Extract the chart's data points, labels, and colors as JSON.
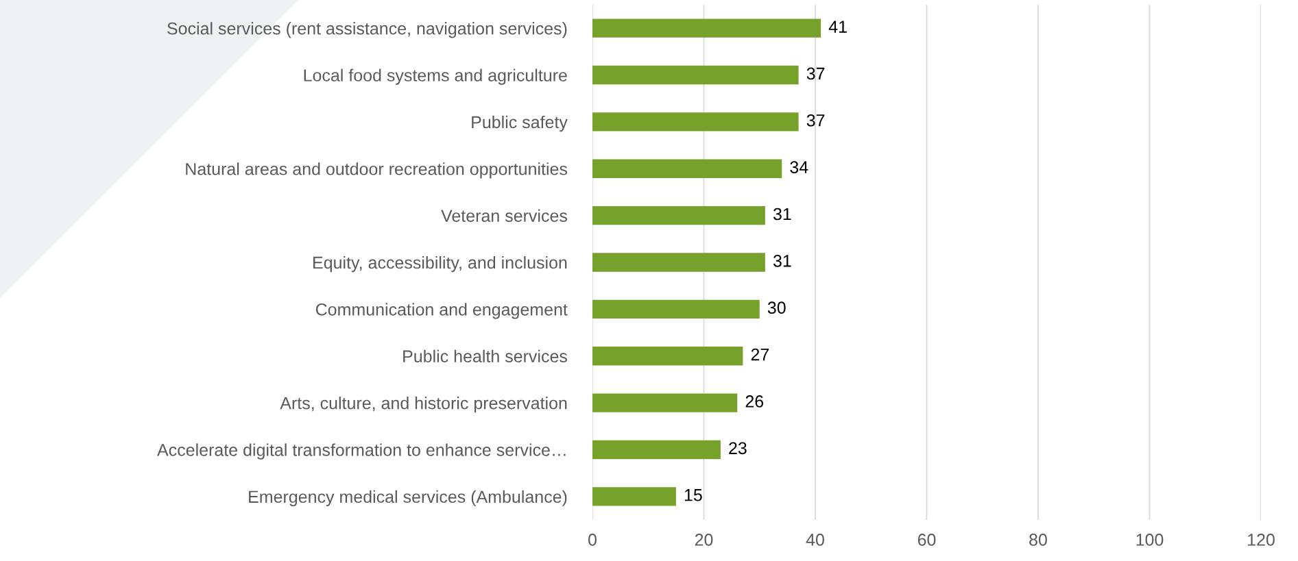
{
  "chart_data": {
    "type": "bar",
    "orientation": "horizontal",
    "categories": [
      "Social services (rent assistance, navigation services)",
      "Local food systems and agriculture",
      "Public safety",
      "Natural areas and outdoor recreation opportunities",
      "Veteran services",
      "Equity, accessibility, and inclusion",
      "Communication and engagement",
      "Public health services",
      "Arts, culture, and historic preservation",
      "Accelerate digital transformation to enhance service…",
      "Emergency medical services (Ambulance)"
    ],
    "values": [
      41,
      37,
      37,
      34,
      31,
      31,
      30,
      27,
      26,
      23,
      15
    ],
    "color": "#76a12a",
    "xlim": [
      0,
      120
    ],
    "xticks": [
      0,
      20,
      40,
      60,
      80,
      100,
      120
    ],
    "grid": "x",
    "data_labels": true
  }
}
